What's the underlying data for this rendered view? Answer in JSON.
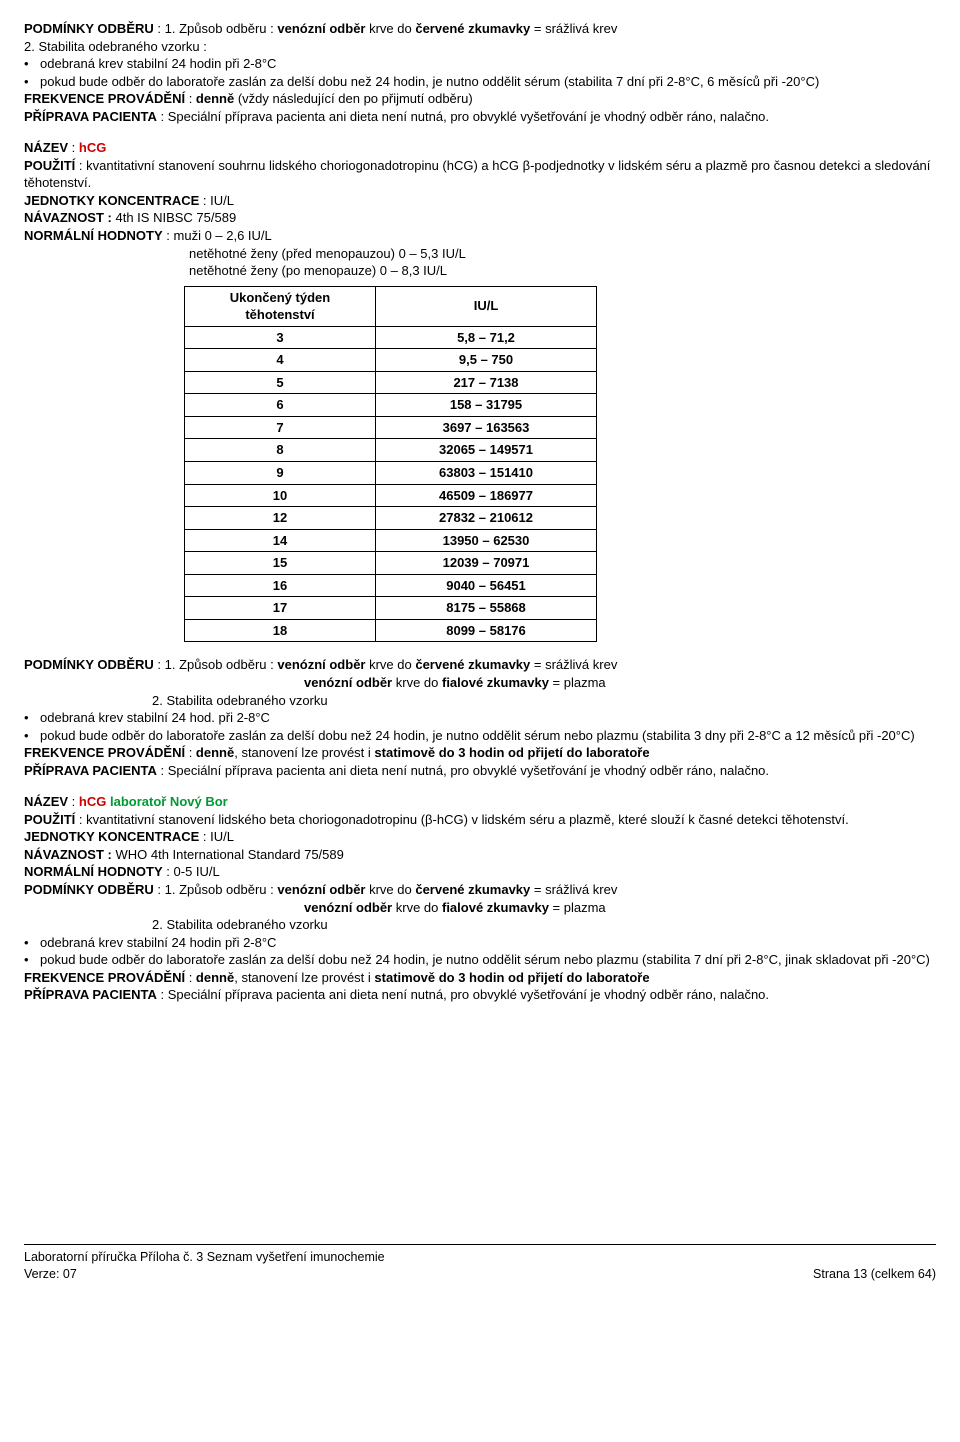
{
  "block1": {
    "p1_label": "PODMÍNKY ODBĚRU",
    "p1_text": " : 1. Způsob odběru  : ",
    "p1_b1": "venózní  odběr",
    "p1_mid": "  krve do ",
    "p1_b2": "červené zkumavky",
    "p1_end": " = srážlivá krev",
    "p2": "2. Stabilita odebraného vzorku :",
    "bul1": "odebraná krev stabilní  24 hodin při 2-8°C",
    "bul2": "pokud bude odběr do laboratoře zaslán za delší dobu než 24 hodin, je nutno oddělit sérum (stabilita 7 dní při 2-8°C, 6 měsíců při -20°C)",
    "freq_label": "FREKVENCE PROVÁDĚNÍ",
    "freq_text": " :  ",
    "freq_b": "denně ",
    "freq_rest": "(vždy následující den po přijmutí odběru)",
    "prep_label": "PŘÍPRAVA PACIENTA",
    "prep_text": " :  Speciální příprava pacienta ani dieta není nutná, pro obvyklé vyšetřování je vhodný odběr ráno, nalačno."
  },
  "block2": {
    "name_label": "NÁZEV",
    "name_sep": " :  ",
    "name_val": "hCG",
    "use_label": "POUŽITÍ",
    "use_text": " :  kvantitativní stanovení souhrnu lidského choriogonadotropinu (hCG) a hCG β-podjednotky  v lidském séru a plazmě pro časnou detekci a sledování těhotenství.",
    "units_label": "JEDNOTKY KONCENTRACE",
    "units_text": " :  IU/L",
    "nav_label": "NÁVAZNOST :",
    "nav_text": " 4th IS NIBSC 75/589",
    "norm_label": "NORMÁLNÍ HODNOTY",
    "norm_text": " :  muži        0 – 2,6 IU/L",
    "norm_line2": "netěhotné ženy (před menopauzou)  0 – 5,3 IU/L",
    "norm_line3": "netěhotné ženy  (po menopauze)     0 – 8,3 IU/L",
    "table": {
      "h1": "Ukončený týden těhotenství",
      "h2": "IU/L",
      "rows": [
        [
          "3",
          "5,8 – 71,2"
        ],
        [
          "4",
          "9,5 – 750"
        ],
        [
          "5",
          "217 – 7138"
        ],
        [
          "6",
          "158 – 31795"
        ],
        [
          "7",
          "3697 – 163563"
        ],
        [
          "8",
          "32065 – 149571"
        ],
        [
          "9",
          "63803 – 151410"
        ],
        [
          "10",
          "46509 – 186977"
        ],
        [
          "12",
          "27832 – 210612"
        ],
        [
          "14",
          "13950 – 62530"
        ],
        [
          "15",
          "12039 – 70971"
        ],
        [
          "16",
          "9040 – 56451"
        ],
        [
          "17",
          "8175 – 55868"
        ],
        [
          "18",
          "8099 – 58176"
        ]
      ]
    }
  },
  "block3": {
    "p1_label": "PODMÍNKY ODBĚRU",
    "p1_text": " : 1. Způsob odběru  : ",
    "p1_b1": "venózní  odběr",
    "p1_mid": "  krve do ",
    "p1_b2": "červené zkumavky",
    "p1_end": " = srážlivá krev",
    "p1b_b1": "venózní  odběr",
    "p1b_mid": "  krve do ",
    "p1b_b2": "fialové  zkumavky",
    "p1b_end": " = plazma",
    "p2": "2. Stabilita odebraného vzorku",
    "bul1": "odebraná krev stabilní 24 hod. při 2-8°C",
    "bul2": "pokud bude odběr do laboratoře zaslán za delší dobu než 24 hodin, je nutno oddělit sérum nebo plazmu (stabilita 3 dny při 2-8°C a 12 měsíců při -20°C)",
    "freq_label": "FREKVENCE PROVÁDĚNÍ",
    "freq_text": " :  ",
    "freq_b": "denně",
    "freq_mid": ", stanovení lze provést i ",
    "freq_b2": "statimově do 3 hodin od přijetí do laboratoře",
    "prep_label": "PŘÍPRAVA PACIENTA",
    "prep_text": " :  Speciální příprava pacienta ani dieta není nutná, pro obvyklé vyšetřování je vhodný odběr ráno, nalačno."
  },
  "block4": {
    "name_label": "NÁZEV",
    "name_sep": " :  ",
    "name_val": "hCG",
    "name_extra": "   laboratoř Nový Bor",
    "use_label": "POUŽITÍ",
    "use_text": " :  kvantitativní stanovení lidského beta choriogonadotropinu (β-hCG) v lidském séru a plazmě, které slouží k časné detekci těhotenství.",
    "units_label": "JEDNOTKY KONCENTRACE",
    "units_text": " :  IU/L",
    "nav_label": "NÁVAZNOST :",
    "nav_text": " WHO 4th International Standard 75/589",
    "norm_label": "NORMÁLNÍ HODNOTY",
    "norm_text": " :  0-5 IU/L",
    "p1_label": "PODMÍNKY ODBĚRU",
    "p1_text": " : 1. Způsob odběru  : ",
    "p1_b1": "venózní  odběr",
    "p1_mid": "  krve do ",
    "p1_b2": "červené zkumavky",
    "p1_end": " = srážlivá krev",
    "p1b_b1": "venózní  odběr",
    "p1b_mid": "  krve do ",
    "p1b_b2": "fialové  zkumavky",
    "p1b_end": " = plazma",
    "p2": "2. Stabilita odebraného vzorku",
    "bul1": "odebraná krev stabilní 24 hodin při 2-8°C",
    "bul2": "pokud bude odběr do laboratoře zaslán za delší dobu než 24 hodin, je nutno oddělit sérum nebo plazmu (stabilita 7 dní při 2-8°C, jinak skladovat při -20°C)",
    "freq_label": "FREKVENCE PROVÁDĚNÍ",
    "freq_text": " :  ",
    "freq_b": "denně",
    "freq_mid": ", stanovení lze provést i ",
    "freq_b2": "statimově do 3 hodin od přijetí do laboratoře",
    "prep_label": "PŘÍPRAVA PACIENTA",
    "prep_text": " :  Speciální příprava pacienta ani dieta není nutná, pro obvyklé vyšetřování je vhodný odběr ráno, nalačno."
  },
  "footer": {
    "left1": "Laboratorní příručka Příloha č. 3 Seznam vyšetření imunochemie",
    "left2": "Verze: 07",
    "right": "Strana 13 (celkem 64)"
  }
}
